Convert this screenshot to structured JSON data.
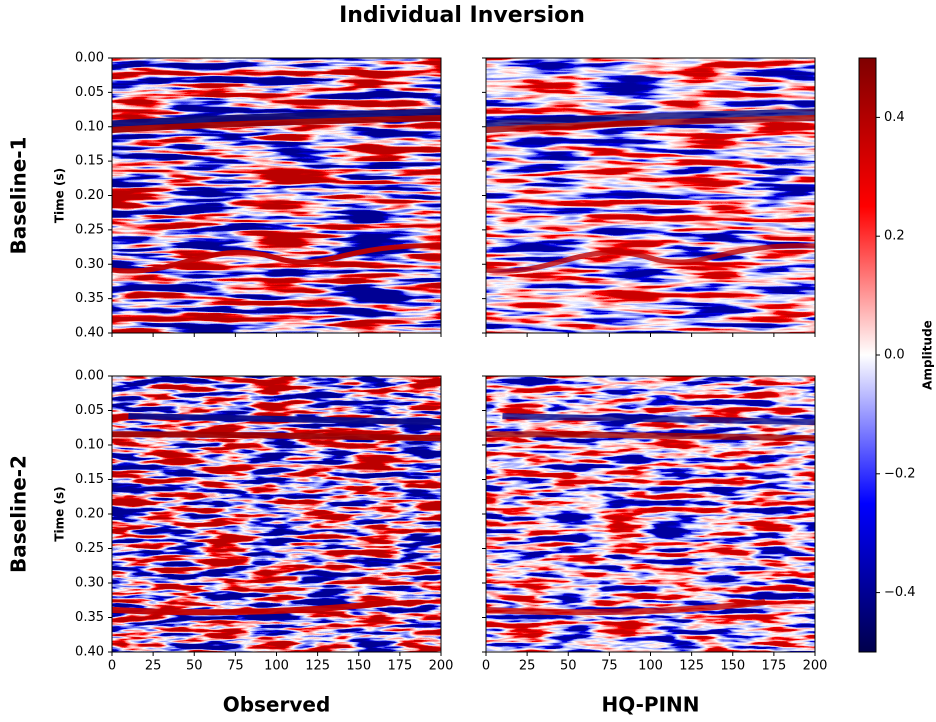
{
  "chart_data": {
    "type": "heatmap",
    "title": "Individual Inversion",
    "row_labels": [
      "Baseline-1",
      "Baseline-2"
    ],
    "column_labels": [
      "Observed",
      "HQ-PINN"
    ],
    "y_label": "Time (s)",
    "xlim": [
      0,
      200
    ],
    "xticks": [
      0,
      25,
      50,
      75,
      100,
      125,
      150,
      175,
      200
    ],
    "ylim": [
      0.4,
      0
    ],
    "yticks": [
      {
        "value": 0,
        "label": "0.00"
      },
      {
        "value": 0.05,
        "label": "0.05"
      },
      {
        "value": 0.1,
        "label": "0.10"
      },
      {
        "value": 0.15,
        "label": "0.15"
      },
      {
        "value": 0.2,
        "label": "0.20"
      },
      {
        "value": 0.25,
        "label": "0.25"
      },
      {
        "value": 0.3,
        "label": "0.30"
      },
      {
        "value": 0.35,
        "label": "0.35"
      },
      {
        "value": 0.4,
        "label": "0.40"
      }
    ],
    "colorbar": {
      "label": "Amplitude",
      "lim": [
        -0.5,
        0.5
      ],
      "ticks": [
        {
          "value": -0.4,
          "label": "−0.4"
        },
        {
          "value": -0.2,
          "label": "−0.2"
        },
        {
          "value": 0,
          "label": "0.0"
        },
        0.2,
        0.4
      ],
      "colors": [
        "#00004c",
        "#0000ff",
        "#ffffff",
        "#ff0000",
        "#7f0000"
      ]
    }
  }
}
